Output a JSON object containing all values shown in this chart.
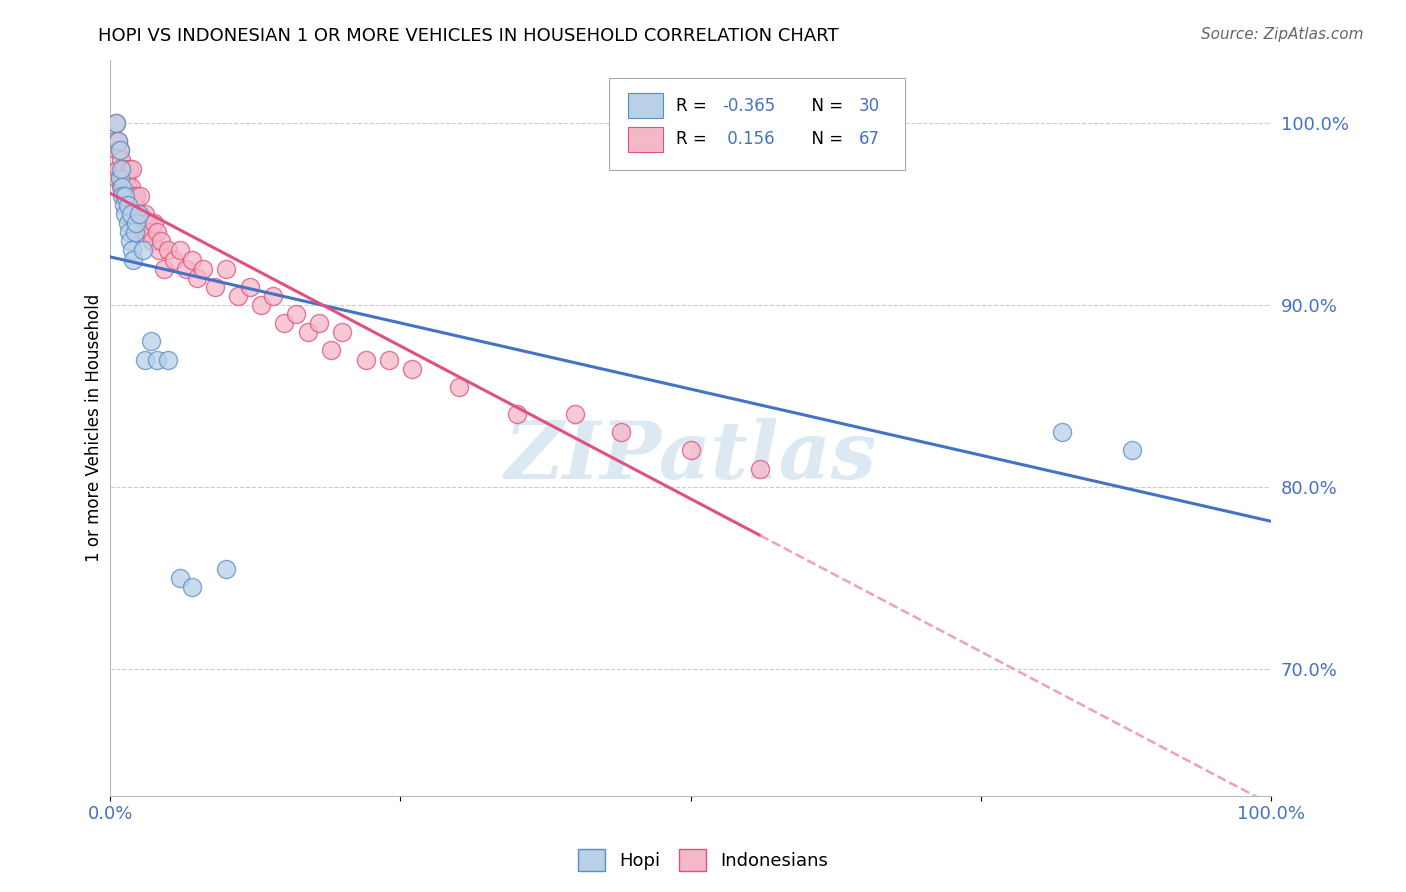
{
  "title": "HOPI VS INDONESIAN 1 OR MORE VEHICLES IN HOUSEHOLD CORRELATION CHART",
  "source": "Source: ZipAtlas.com",
  "ylabel": "1 or more Vehicles in Household",
  "xlim": [
    0.0,
    1.0
  ],
  "ylim": [
    0.63,
    1.035
  ],
  "xticks": [
    0.0,
    0.25,
    0.5,
    0.75,
    1.0
  ],
  "xtick_labels": [
    "0.0%",
    "",
    "",
    "",
    "100.0%"
  ],
  "ytick_labels": [
    "70.0%",
    "80.0%",
    "90.0%",
    "100.0%"
  ],
  "yticks": [
    0.7,
    0.8,
    0.9,
    1.0
  ],
  "hopi_r": -0.365,
  "hopi_n": 30,
  "indo_r": 0.156,
  "indo_n": 67,
  "hopi_color": "#b8d0e8",
  "indo_color": "#f5b8c8",
  "hopi_edge_color": "#5b8ec4",
  "indo_edge_color": "#e05080",
  "hopi_line_color": "#4472c4",
  "indo_line_color": "#e05080",
  "indo_dashed_color": "#f0a0b8",
  "watermark": "ZIPatlas",
  "hopi_x": [
    0.005,
    0.007,
    0.008,
    0.008,
    0.009,
    0.01,
    0.01,
    0.012,
    0.013,
    0.013,
    0.015,
    0.015,
    0.016,
    0.017,
    0.018,
    0.019,
    0.02,
    0.021,
    0.022,
    0.025,
    0.028,
    0.03,
    0.035,
    0.04,
    0.05,
    0.06,
    0.07,
    0.1,
    0.82,
    0.88
  ],
  "hopi_y": [
    1.0,
    0.99,
    0.985,
    0.97,
    0.975,
    0.965,
    0.96,
    0.955,
    0.95,
    0.96,
    0.945,
    0.955,
    0.94,
    0.935,
    0.95,
    0.93,
    0.925,
    0.94,
    0.945,
    0.95,
    0.93,
    0.87,
    0.88,
    0.87,
    0.87,
    0.75,
    0.745,
    0.755,
    0.83,
    0.82
  ],
  "indo_x": [
    0.004,
    0.005,
    0.006,
    0.006,
    0.007,
    0.007,
    0.008,
    0.008,
    0.009,
    0.009,
    0.01,
    0.011,
    0.012,
    0.012,
    0.013,
    0.014,
    0.014,
    0.015,
    0.016,
    0.016,
    0.017,
    0.018,
    0.019,
    0.02,
    0.021,
    0.022,
    0.024,
    0.025,
    0.026,
    0.028,
    0.03,
    0.032,
    0.034,
    0.036,
    0.038,
    0.04,
    0.042,
    0.044,
    0.046,
    0.05,
    0.055,
    0.06,
    0.065,
    0.07,
    0.075,
    0.08,
    0.09,
    0.1,
    0.11,
    0.12,
    0.13,
    0.14,
    0.15,
    0.16,
    0.17,
    0.18,
    0.19,
    0.2,
    0.22,
    0.24,
    0.26,
    0.3,
    0.35,
    0.4,
    0.44,
    0.5,
    0.56
  ],
  "indo_y": [
    0.99,
    1.0,
    0.985,
    0.97,
    0.99,
    0.975,
    0.985,
    0.97,
    0.98,
    0.965,
    0.975,
    0.97,
    0.965,
    0.975,
    0.96,
    0.96,
    0.97,
    0.965,
    0.96,
    0.975,
    0.955,
    0.965,
    0.975,
    0.96,
    0.955,
    0.96,
    0.95,
    0.945,
    0.96,
    0.94,
    0.95,
    0.945,
    0.94,
    0.935,
    0.945,
    0.94,
    0.93,
    0.935,
    0.92,
    0.93,
    0.925,
    0.93,
    0.92,
    0.925,
    0.915,
    0.92,
    0.91,
    0.92,
    0.905,
    0.91,
    0.9,
    0.905,
    0.89,
    0.895,
    0.885,
    0.89,
    0.875,
    0.885,
    0.87,
    0.87,
    0.865,
    0.855,
    0.84,
    0.84,
    0.83,
    0.82,
    0.81
  ]
}
